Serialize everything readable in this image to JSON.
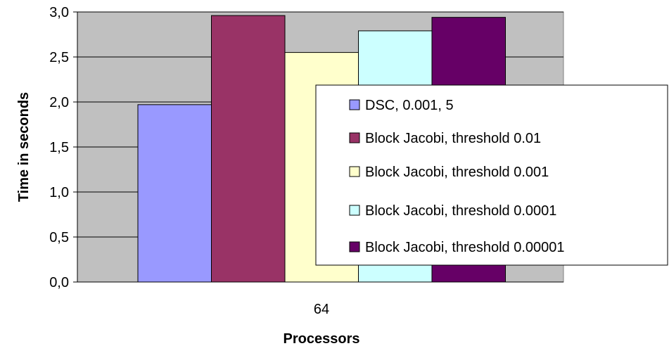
{
  "chart_data": {
    "type": "bar",
    "categories": [
      "64"
    ],
    "series": [
      {
        "name": "DSC, 0.001, 5",
        "values": [
          1.97
        ],
        "color": "#9999ff"
      },
      {
        "name": "Block Jacobi, threshold 0.01",
        "values": [
          2.96
        ],
        "color": "#993366"
      },
      {
        "name": "Block Jacobi, threshold 0.001",
        "values": [
          2.55
        ],
        "color": "#ffffcc"
      },
      {
        "name": "Block Jacobi, threshold 0.0001",
        "values": [
          2.79
        ],
        "color": "#ccffff"
      },
      {
        "name": "Block Jacobi, threshold 0.00001",
        "values": [
          2.94
        ],
        "color": "#660066"
      }
    ],
    "xlabel": "Processors",
    "ylabel": "Time in seconds",
    "ylim": [
      0,
      3.0
    ],
    "yticks": [
      "0,0",
      "0,5",
      "1,0",
      "1,5",
      "2,0",
      "2,5",
      "3,0"
    ],
    "ytick_values": [
      0,
      0.5,
      1.0,
      1.5,
      2.0,
      2.5,
      3.0
    ],
    "plot_background": "#c0c0c0",
    "grid": true,
    "legend_position": "right, overlapping plot"
  }
}
